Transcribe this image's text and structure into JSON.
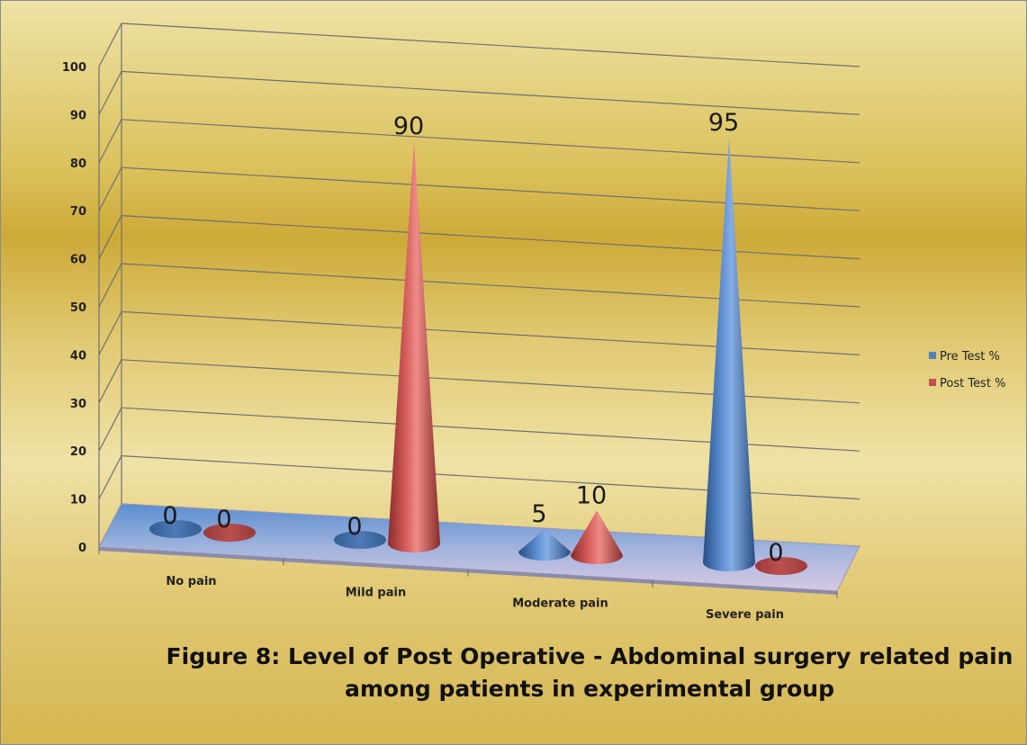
{
  "chart_data": {
    "type": "bar",
    "style": "3d-cone",
    "categories": [
      "No pain",
      "Mild pain",
      "Moderate pain",
      "Severe pain"
    ],
    "series": [
      {
        "name": "Pre Test %",
        "values": [
          0,
          0,
          5,
          95
        ],
        "color": "#4F81BD"
      },
      {
        "name": "Post Test %",
        "values": [
          0,
          90,
          10,
          0
        ],
        "color": "#C0504D"
      }
    ],
    "data_labels": [
      [
        "0",
        "0",
        "5",
        "95"
      ],
      [
        "0",
        "90",
        "10",
        "0"
      ]
    ],
    "y_ticks": [
      "0",
      "10",
      "20",
      "30",
      "40",
      "50",
      "60",
      "70",
      "80",
      "90",
      "100"
    ],
    "ylim": [
      0,
      100
    ],
    "title_lines": [
      "Figure 8: Level of Post Operative - Abdominal surgery related pain",
      "among patients in experimental group"
    ],
    "xlabel": "",
    "ylabel": "",
    "grid": true,
    "legend_position": "right",
    "background": "#D9B648"
  }
}
